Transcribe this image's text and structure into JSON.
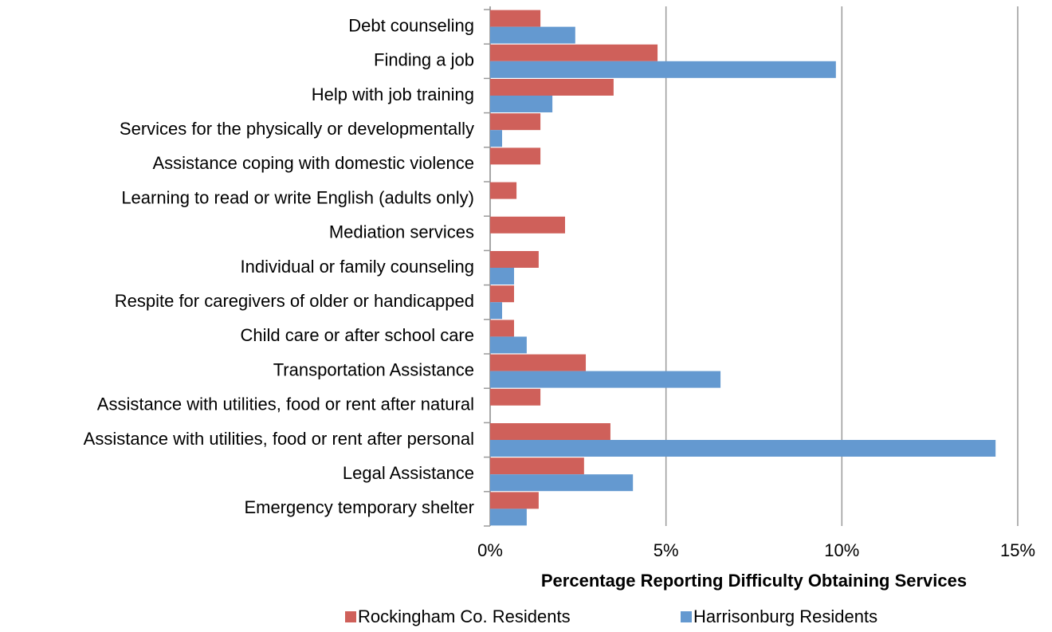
{
  "chart_data": {
    "type": "hbar",
    "xlabel": "Percentage Reporting Difficulty Obtaining Services",
    "categories": [
      "Debt counseling",
      "Finding a job",
      "Help with job training",
      "Services for the physically or developmentally",
      "Assistance coping with domestic violence",
      "Learning to read or write English (adults only)",
      "Mediation services",
      "Individual or family counseling",
      "Respite for caregivers of older or handicapped",
      "Child care or after school care",
      "Transportation Assistance",
      "Assistance with utilities, food or rent after natural",
      "Assistance with utilities, food or rent after personal",
      "Legal Assistance",
      "Emergency temporary shelter"
    ],
    "series": [
      {
        "name": "Rockingham Co. Residents",
        "color": "#cf605a",
        "values": [
          1.43,
          4.76,
          3.51,
          1.43,
          1.43,
          0.75,
          2.13,
          1.38,
          0.68,
          0.68,
          2.72,
          1.43,
          3.42,
          2.67,
          1.38
        ]
      },
      {
        "name": "Harrisonburg Residents",
        "color": "#6499d0",
        "values": [
          2.42,
          9.83,
          1.77,
          0.34,
          0,
          0,
          0,
          0.68,
          0.34,
          1.04,
          6.55,
          0,
          14.37,
          4.06,
          1.04
        ]
      }
    ],
    "xlim": [
      0,
      15
    ],
    "xticks": [
      {
        "value": 0,
        "label": "0%"
      },
      {
        "value": 5,
        "label": "5%"
      },
      {
        "value": 10,
        "label": "10%"
      },
      {
        "value": 15,
        "label": "15%"
      }
    ],
    "grid": true,
    "legend": "bottom"
  }
}
